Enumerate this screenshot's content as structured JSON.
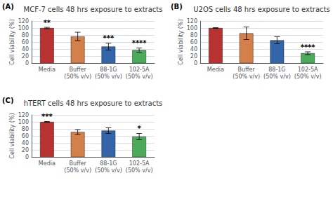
{
  "chart_data": [
    {
      "type": "bar",
      "label": "(A)",
      "title": "MCF-7 cells 48 hrs exposure to extracts",
      "categories": [
        "Media",
        "Buffer\n(50% v/v)",
        "88-1G\n(50% v/v)",
        "102-5A\n(50% v/v)"
      ],
      "values": [
        100,
        76,
        47,
        37
      ],
      "errors": [
        2,
        12,
        10,
        6
      ],
      "colors": [
        "#b83232",
        "#d4804a",
        "#3465a8",
        "#4aab5a"
      ],
      "annotations": [
        "**",
        null,
        "***",
        "****"
      ],
      "ylabel": "Cell viability (%)",
      "ylim": [
        0,
        120
      ],
      "yticks": [
        0,
        20,
        40,
        60,
        80,
        100,
        120
      ],
      "grid": true
    },
    {
      "type": "bar",
      "label": "(B)",
      "title": "U2OS cells 48 hrs exposure to extracts",
      "categories": [
        "Media",
        "Buffer\n(50% v/v)",
        "88-1G\n(50% v/v)",
        "102-5A\n(50% v/v)"
      ],
      "values": [
        100,
        85,
        65,
        28
      ],
      "errors": [
        1,
        18,
        10,
        4
      ],
      "colors": [
        "#b83232",
        "#d4804a",
        "#3465a8",
        "#4aab5a"
      ],
      "annotations": [
        null,
        null,
        null,
        "****"
      ],
      "ylabel": "Cell viability (%)",
      "ylim": [
        0,
        120
      ],
      "yticks": [
        0,
        20,
        40,
        60,
        80,
        100,
        120
      ],
      "grid": true
    },
    {
      "type": "bar",
      "label": "(C)",
      "title": "hTERT cells 48 hrs exposure to extracts",
      "categories": [
        "Media",
        "Buffer\n(50% v/v)",
        "88-1G\n(50% v/v)",
        "102-5A\n(50% v/v)"
      ],
      "values": [
        100,
        71,
        75,
        58
      ],
      "errors": [
        1,
        7,
        8,
        9
      ],
      "colors": [
        "#b83232",
        "#d4804a",
        "#3465a8",
        "#4aab5a"
      ],
      "annotations": [
        "***",
        null,
        null,
        "*"
      ],
      "ylabel": "Cell viability (%)",
      "ylim": [
        0,
        120
      ],
      "yticks": [
        0,
        20,
        40,
        60,
        80,
        100,
        120
      ],
      "grid": true
    }
  ]
}
